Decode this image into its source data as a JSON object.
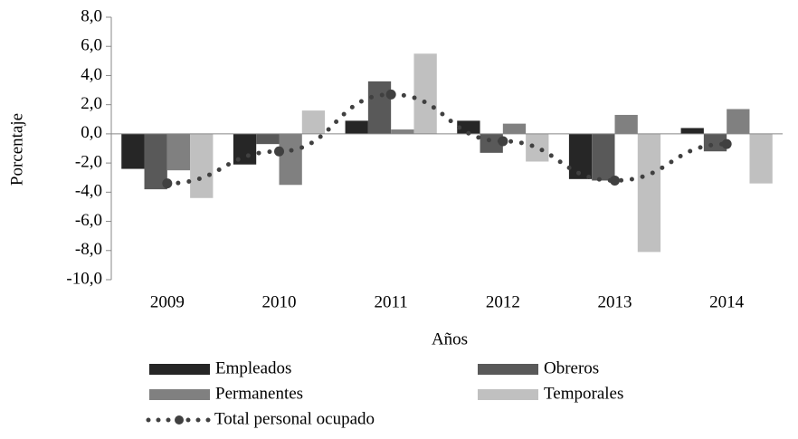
{
  "chart_data": {
    "type": "bar",
    "xlabel": "Años",
    "ylabel": "Porcentaje",
    "categories": [
      "2009",
      "2010",
      "2011",
      "2012",
      "2013",
      "2014"
    ],
    "series": [
      {
        "name": "Empleados",
        "color": "#262626",
        "values": [
          -2.4,
          -2.1,
          0.9,
          0.9,
          -3.1,
          0.4
        ]
      },
      {
        "name": "Obreros",
        "color": "#595959",
        "values": [
          -3.8,
          -0.7,
          3.6,
          -1.3,
          -3.2,
          -1.2
        ]
      },
      {
        "name": "Permanentes",
        "color": "#808080",
        "values": [
          -2.5,
          -3.5,
          0.3,
          0.7,
          1.3,
          1.7
        ]
      },
      {
        "name": "Temporales",
        "color": "#c0c0c0",
        "values": [
          -4.4,
          1.6,
          5.5,
          -1.9,
          -8.1,
          -3.4
        ]
      },
      {
        "name": "Total personal ocupado",
        "color": "#404040",
        "type": "line",
        "values": [
          -3.4,
          -1.2,
          2.7,
          -0.5,
          -3.2,
          -0.7
        ]
      }
    ],
    "ylim": [
      -10,
      8
    ],
    "yticks": [
      {
        "value": 8,
        "label": "8,0"
      },
      {
        "value": 6,
        "label": "6,0"
      },
      {
        "value": 4,
        "label": "4,0"
      },
      {
        "value": 2,
        "label": "2,0"
      },
      {
        "value": 0,
        "label": "0,0"
      },
      {
        "value": -2,
        "label": "-2,0"
      },
      {
        "value": -4,
        "label": "-4,0"
      },
      {
        "value": -6,
        "label": "-6,0"
      },
      {
        "value": -8,
        "label": "-8,0"
      },
      {
        "value": -10,
        "label": "-10,0"
      }
    ],
    "legend": "bottom"
  }
}
